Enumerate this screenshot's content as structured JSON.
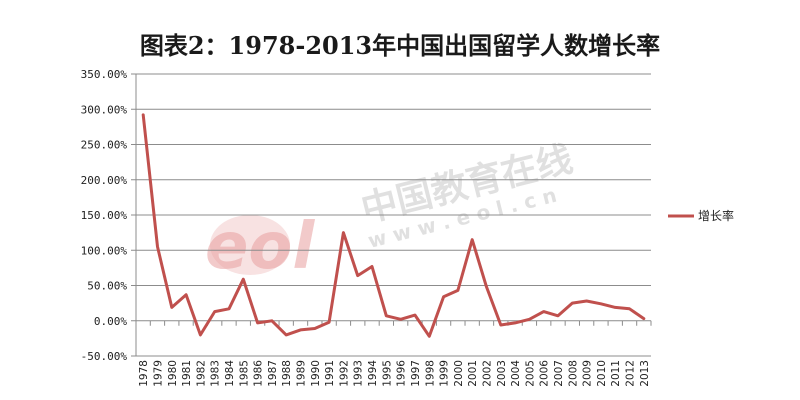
{
  "watermark": {
    "logo_text": "eol",
    "cn_text": "中国教育在线",
    "url_text": "w w w . e o l . c n",
    "logo_color": "#e8a0a0",
    "text_color": "#c8c8c8"
  },
  "chart_data": {
    "type": "line",
    "title": "图表2：1978-2013年中国出国留学人数增长率",
    "xlabel": "",
    "ylabel": "",
    "ylim": [
      -50,
      350
    ],
    "yticks": [
      -50,
      0,
      50,
      100,
      150,
      200,
      250,
      300,
      350
    ],
    "ytick_labels": [
      "-50.00%",
      "0.00%",
      "50.00%",
      "100.00%",
      "150.00%",
      "200.00%",
      "250.00%",
      "300.00%",
      "350.00%"
    ],
    "grid": true,
    "legend_position": "right",
    "categories": [
      "1978",
      "1979",
      "1980",
      "1981",
      "1982",
      "1983",
      "1984",
      "1985",
      "1986",
      "1987",
      "1988",
      "1989",
      "1990",
      "1991",
      "1992",
      "1993",
      "1994",
      "1995",
      "1996",
      "1997",
      "1998",
      "1999",
      "2000",
      "2001",
      "2002",
      "2003",
      "2004",
      "2005",
      "2006",
      "2007",
      "2008",
      "2009",
      "2010",
      "2011",
      "2012",
      "2013"
    ],
    "series": [
      {
        "name": "增长率",
        "color": "#c0504d",
        "values": [
          292,
          105,
          19,
          37,
          -20,
          13,
          17,
          59,
          -3,
          0,
          -20,
          -13,
          -11,
          -2,
          125,
          64,
          77,
          7,
          2,
          8,
          -22,
          34,
          43,
          115,
          48,
          -6,
          -3,
          2,
          13,
          7,
          25,
          28,
          24,
          19,
          17,
          3
        ]
      }
    ]
  }
}
